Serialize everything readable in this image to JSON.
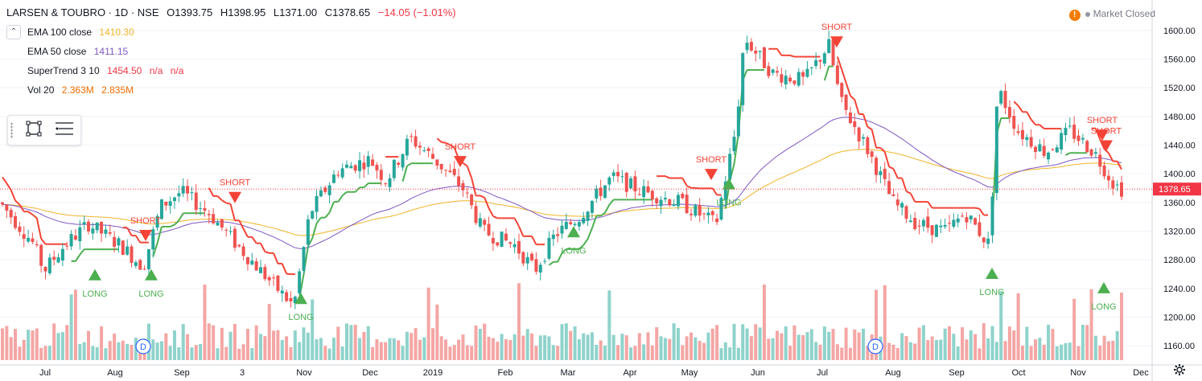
{
  "header": {
    "symbol": "LARSEN & TOUBRO · 1D · NSE",
    "open": "O1393.75",
    "high": "H1398.95",
    "low": "L1371.00",
    "close": "C1378.65",
    "change": "−14.05 (−1.01%)",
    "market_status": "Market Closed",
    "warn_glyph": "!"
  },
  "indicators": {
    "ema100": {
      "name": "EMA 100 close",
      "value": "1410.30",
      "color": "#f0b429"
    },
    "ema50": {
      "name": "EMA 50 close",
      "value": "1411.15",
      "color": "#7e57c2"
    },
    "supertrend": {
      "name": "SuperTrend 3 10",
      "value": "1454.50",
      "extra1": "n/a",
      "extra2": "n/a",
      "color": "#f23645"
    },
    "vol": {
      "name": "Vol 20",
      "value1": "2.363M",
      "value2": "2.835M",
      "color": "#ef6c00"
    }
  },
  "toolbar": {
    "tool1": "select-box-icon",
    "tool2": "menu-lines-icon",
    "settings": "gear-icon",
    "collapse_glyph": "⌃"
  },
  "colors": {
    "up": "#26a69a",
    "down": "#ef5350",
    "st_up": "#4caf50",
    "st_down": "#f44336",
    "vol_up": "#8fd3cb",
    "vol_down": "#f4a6a4",
    "last": "#f23645"
  },
  "chart_data": {
    "type": "candlestick",
    "yaxis": {
      "min": 1140,
      "max": 1620,
      "ticks": [
        1160,
        1200,
        1240,
        1280,
        1320,
        1360,
        1400,
        1440,
        1480,
        1520,
        1560,
        1600
      ]
    },
    "xaxis": {
      "months": [
        "Jul",
        "Aug",
        "Sep",
        "3",
        "Nov",
        "Dec",
        "2019",
        "Feb",
        "Mar",
        "Apr",
        "May",
        "Jun",
        "Jul",
        "Aug",
        "Sep",
        "Oct",
        "Nov",
        "Dec"
      ]
    },
    "last_price": "1378.65",
    "signals": [
      {
        "type": "LONG",
        "price": 1258
      },
      {
        "type": "SHORT",
        "price": 1315
      },
      {
        "type": "LONG",
        "price": 1258
      },
      {
        "type": "SHORT",
        "price": 1368
      },
      {
        "type": "LONG",
        "price": 1225
      },
      {
        "type": "SHORT",
        "price": 1418
      },
      {
        "type": "LONG",
        "price": 1318
      },
      {
        "type": "SHORT",
        "price": 1400
      },
      {
        "type": "LONG",
        "price": 1385
      },
      {
        "type": "SHORT",
        "price": 1585
      },
      {
        "type": "LONG",
        "price": 1260
      },
      {
        "type": "SHORT",
        "price": 1455
      },
      {
        "type": "LONG",
        "price": 1240
      },
      {
        "type": "SHORT",
        "price": 1440
      }
    ],
    "dividend_markers": [
      "D",
      "D"
    ]
  }
}
